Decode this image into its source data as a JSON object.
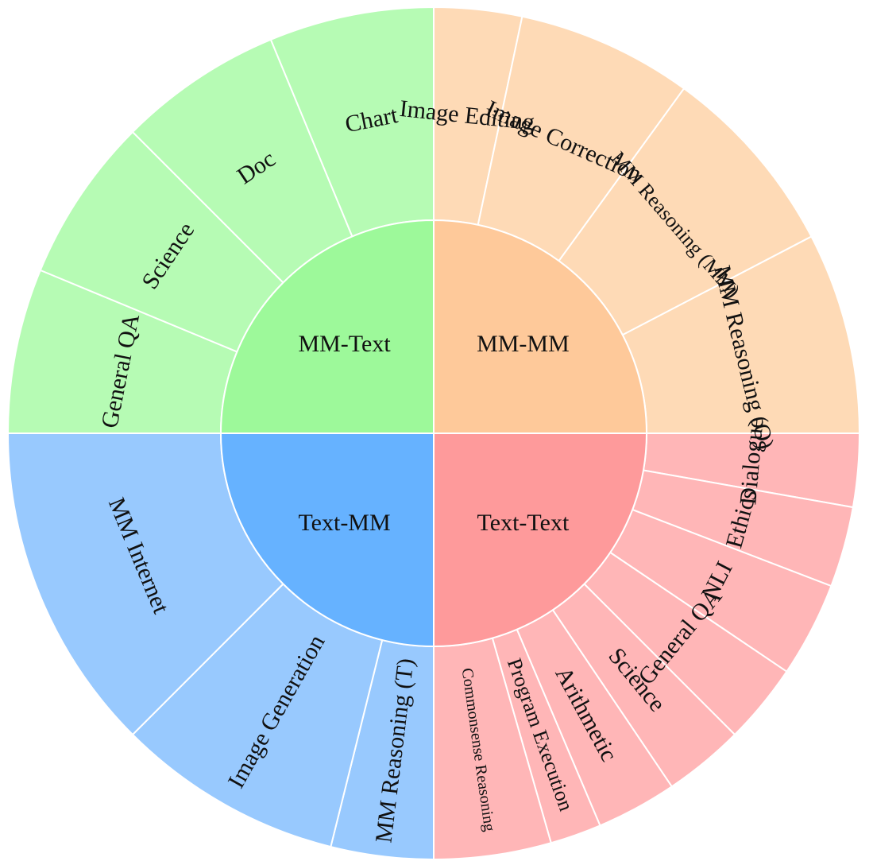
{
  "chart_data": {
    "type": "sunburst",
    "title": "",
    "groups": [
      {
        "name": "MM-Text",
        "color": "#9df99a",
        "child_color": "#b6fbb4",
        "children": [
          {
            "name": "General QA",
            "value": 22.5
          },
          {
            "name": "Science",
            "value": 22.5
          },
          {
            "name": "Doc",
            "value": 22.5
          },
          {
            "name": "Chart",
            "value": 22.5
          }
        ]
      },
      {
        "name": "MM-MM",
        "color": "#fec99a",
        "child_color": "#fedab6",
        "children": [
          {
            "name": "Image Editing",
            "value": 12
          },
          {
            "name": "Image Correction",
            "value": 24
          },
          {
            "name": "MM Reasoning (MM)",
            "value": 26.5
          },
          {
            "name": "MM Reasoning (O)",
            "value": 27.5
          }
        ]
      },
      {
        "name": "Text-Text",
        "color": "#fe9a9b",
        "child_color": "#ffb6b7",
        "children": [
          {
            "name": "Dialogue",
            "value": 10
          },
          {
            "name": "Ethics",
            "value": 11
          },
          {
            "name": "NLI",
            "value": 13
          },
          {
            "name": "General QA",
            "value": 11
          },
          {
            "name": "Science",
            "value": 11
          },
          {
            "name": "Arithmetic",
            "value": 11
          },
          {
            "name": "Program Execution",
            "value": 7
          },
          {
            "name": "Commonsense Reasoning",
            "value": 16
          }
        ]
      },
      {
        "name": "Text-MM",
        "color": "#66b2ff",
        "child_color": "#98c9fe",
        "children": [
          {
            "name": "MM Reasoning (T)",
            "value": 14
          },
          {
            "name": "Image Generation",
            "value": 31
          },
          {
            "name": "MM Internet",
            "value": 45
          }
        ]
      }
    ]
  }
}
